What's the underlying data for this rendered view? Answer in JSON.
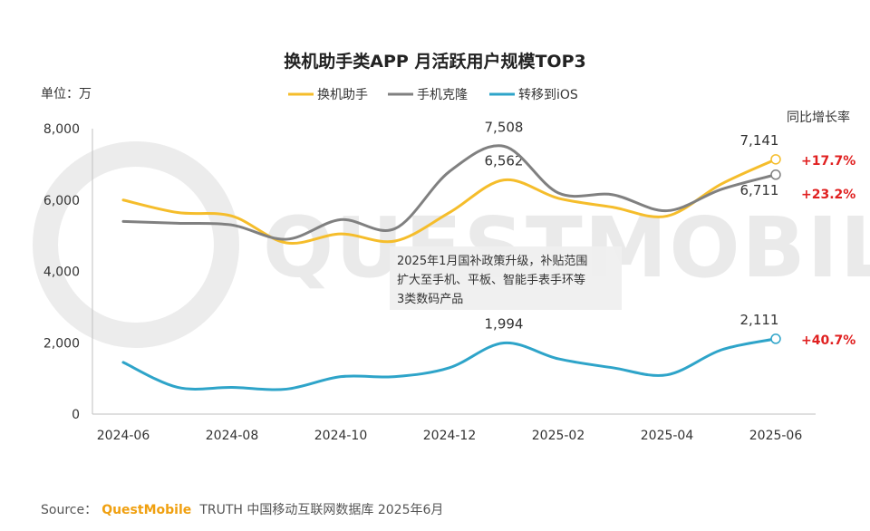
{
  "chart_data": {
    "type": "line",
    "title": "换机助手类APP 月活跃用户规模TOP3",
    "unit_label": "单位：万",
    "yoy_header": "同比增长率",
    "x": [
      "2024-06",
      "2024-07",
      "2024-08",
      "2024-09",
      "2024-10",
      "2024-11",
      "2024-12",
      "2025-01",
      "2025-02",
      "2025-03",
      "2025-04",
      "2025-05",
      "2025-06"
    ],
    "x_tick_labels": [
      "2024-06",
      "2024-08",
      "2024-10",
      "2024-12",
      "2025-02",
      "2025-04",
      "2025-06"
    ],
    "y_ticks": [
      "0",
      "2,000",
      "4,000",
      "6,000",
      "8,000"
    ],
    "ylim": [
      0,
      8000
    ],
    "grid": false,
    "legend_position": "top-center",
    "series": [
      {
        "name": "换机助手",
        "color": "#f5bd2b",
        "values": [
          6000,
          5650,
          5550,
          4800,
          5050,
          4850,
          5650,
          6562,
          6050,
          5800,
          5550,
          6450,
          7141
        ],
        "labels": [
          {
            "index": 7,
            "text": "6,562"
          },
          {
            "index": 12,
            "text": "7,141"
          }
        ],
        "growth": "+17.7%"
      },
      {
        "name": "手机克隆",
        "color": "#808080",
        "values": [
          5400,
          5350,
          5300,
          4900,
          5450,
          5200,
          6800,
          7508,
          6200,
          6150,
          5700,
          6300,
          6711
        ],
        "labels": [
          {
            "index": 7,
            "text": "7,508"
          },
          {
            "index": 12,
            "text": "6,711"
          }
        ],
        "growth": "+23.2%"
      },
      {
        "name": "转移到iOS",
        "color": "#2ea4c9",
        "values": [
          1450,
          750,
          750,
          700,
          1050,
          1050,
          1300,
          1994,
          1550,
          1300,
          1100,
          1800,
          2111
        ],
        "labels": [
          {
            "index": 7,
            "text": "1,994"
          },
          {
            "index": 12,
            "text": "2,111"
          }
        ],
        "growth": "+40.7%"
      }
    ],
    "annotation": [
      "2025年1月国补政策升级，补贴范围",
      "扩大至手机、平板、智能手表手环等",
      "3类数码产品"
    ]
  },
  "watermark": "QUESTMOBILE",
  "source": {
    "prefix": "Source：",
    "brand": "QuestMobile",
    "text": "TRUTH 中国移动互联网数据库 2025年6月"
  }
}
